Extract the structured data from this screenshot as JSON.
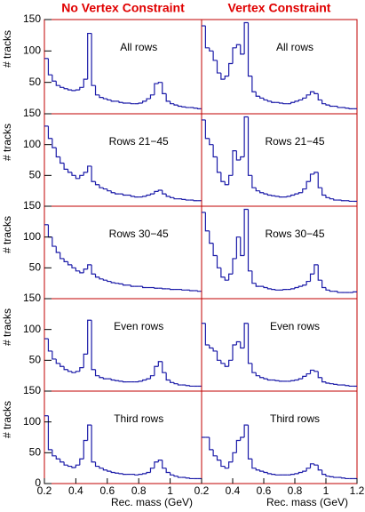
{
  "chart_data": [
    {
      "type": "histogram",
      "title": "No Vertex Constraint",
      "annotation": "All rows",
      "ylabel": "# tracks",
      "color": "#1a1aa8",
      "bins": [
        0.2,
        0.225,
        0.25,
        0.275,
        0.3,
        0.325,
        0.35,
        0.375,
        0.4,
        0.425,
        0.45,
        0.475,
        0.5,
        0.525,
        0.55,
        0.575,
        0.6,
        0.625,
        0.65,
        0.675,
        0.7,
        0.725,
        0.75,
        0.775,
        0.8,
        0.825,
        0.85,
        0.875,
        0.9,
        0.925,
        0.95,
        0.975,
        1.0,
        1.025,
        1.05,
        1.075,
        1.1,
        1.125,
        1.15,
        1.175,
        1.2
      ],
      "values": [
        88,
        62,
        52,
        45,
        42,
        40,
        38,
        37,
        38,
        42,
        55,
        128,
        45,
        30,
        26,
        24,
        22,
        20,
        20,
        18,
        17,
        17,
        16,
        16,
        17,
        20,
        24,
        30,
        48,
        50,
        32,
        20,
        16,
        14,
        12,
        11,
        10,
        10,
        9,
        8
      ],
      "xlim": [
        0.2,
        1.2
      ],
      "ylim": [
        0,
        150
      ],
      "yticks": [
        50,
        100,
        150
      ]
    },
    {
      "type": "histogram",
      "title": "Vertex Constraint",
      "annotation": "All rows",
      "color": "#1a1aa8",
      "bins": [
        0.2,
        0.225,
        0.25,
        0.275,
        0.3,
        0.325,
        0.35,
        0.375,
        0.4,
        0.425,
        0.45,
        0.475,
        0.5,
        0.525,
        0.55,
        0.575,
        0.6,
        0.625,
        0.65,
        0.675,
        0.7,
        0.725,
        0.75,
        0.775,
        0.8,
        0.825,
        0.85,
        0.875,
        0.9,
        0.925,
        0.95,
        0.975,
        1.0,
        1.025,
        1.05,
        1.075,
        1.1,
        1.125,
        1.15,
        1.175,
        1.2
      ],
      "values": [
        140,
        105,
        100,
        85,
        65,
        55,
        60,
        80,
        105,
        110,
        95,
        145,
        60,
        35,
        28,
        25,
        22,
        20,
        18,
        18,
        17,
        16,
        16,
        18,
        20,
        22,
        25,
        30,
        35,
        32,
        22,
        16,
        14,
        12,
        12,
        10,
        10,
        9,
        8,
        8
      ],
      "xlim": [
        0.2,
        1.2
      ],
      "ylim": [
        0,
        150
      ]
    },
    {
      "type": "histogram",
      "annotation": "Rows 21−45",
      "ylabel": "# tracks",
      "color": "#1a1aa8",
      "bins": [
        0.2,
        0.225,
        0.25,
        0.275,
        0.3,
        0.325,
        0.35,
        0.375,
        0.4,
        0.425,
        0.45,
        0.475,
        0.5,
        0.525,
        0.55,
        0.575,
        0.6,
        0.625,
        0.65,
        0.675,
        0.7,
        0.725,
        0.75,
        0.775,
        0.8,
        0.825,
        0.85,
        0.875,
        0.9,
        0.925,
        0.95,
        0.975,
        1.0,
        1.025,
        1.05,
        1.075,
        1.1,
        1.125,
        1.15,
        1.175,
        1.2
      ],
      "values": [
        130,
        110,
        95,
        80,
        70,
        60,
        55,
        50,
        45,
        50,
        55,
        65,
        40,
        35,
        30,
        28,
        25,
        22,
        20,
        20,
        18,
        18,
        16,
        15,
        15,
        16,
        18,
        20,
        24,
        26,
        20,
        16,
        14,
        12,
        12,
        11,
        10,
        10,
        9,
        9
      ],
      "xlim": [
        0.2,
        1.2
      ],
      "ylim": [
        0,
        150
      ],
      "yticks": [
        50,
        100,
        150
      ]
    },
    {
      "type": "histogram",
      "annotation": "Rows 21−45",
      "color": "#1a1aa8",
      "bins": [
        0.2,
        0.225,
        0.25,
        0.275,
        0.3,
        0.325,
        0.35,
        0.375,
        0.4,
        0.425,
        0.45,
        0.475,
        0.5,
        0.525,
        0.55,
        0.575,
        0.6,
        0.625,
        0.65,
        0.675,
        0.7,
        0.725,
        0.75,
        0.775,
        0.8,
        0.825,
        0.85,
        0.875,
        0.9,
        0.925,
        0.95,
        0.975,
        1.0,
        1.025,
        1.05,
        1.075,
        1.1,
        1.125,
        1.15,
        1.175,
        1.2
      ],
      "values": [
        140,
        110,
        100,
        80,
        55,
        40,
        35,
        50,
        90,
        75,
        80,
        145,
        50,
        30,
        25,
        22,
        20,
        18,
        17,
        16,
        15,
        15,
        16,
        18,
        20,
        22,
        28,
        40,
        52,
        55,
        30,
        18,
        14,
        12,
        10,
        10,
        9,
        9,
        8,
        8
      ],
      "xlim": [
        0.2,
        1.2
      ],
      "ylim": [
        0,
        150
      ]
    },
    {
      "type": "histogram",
      "annotation": "Rows 30−45",
      "ylabel": "# tracks",
      "color": "#1a1aa8",
      "bins": [
        0.2,
        0.225,
        0.25,
        0.275,
        0.3,
        0.325,
        0.35,
        0.375,
        0.4,
        0.425,
        0.45,
        0.475,
        0.5,
        0.525,
        0.55,
        0.575,
        0.6,
        0.625,
        0.65,
        0.675,
        0.7,
        0.725,
        0.75,
        0.775,
        0.8,
        0.825,
        0.85,
        0.875,
        0.9,
        0.925,
        0.95,
        0.975,
        1.0,
        1.025,
        1.05,
        1.075,
        1.1,
        1.125,
        1.15,
        1.175,
        1.2
      ],
      "values": [
        120,
        100,
        85,
        75,
        65,
        60,
        55,
        50,
        45,
        42,
        48,
        55,
        40,
        35,
        32,
        30,
        28,
        26,
        25,
        24,
        22,
        22,
        20,
        20,
        20,
        18,
        18,
        18,
        17,
        17,
        16,
        16,
        15,
        15,
        15,
        14,
        14,
        13,
        13,
        12
      ],
      "xlim": [
        0.2,
        1.2
      ],
      "ylim": [
        0,
        150
      ],
      "yticks": [
        50,
        100,
        150
      ]
    },
    {
      "type": "histogram",
      "annotation": "Rows 30−45",
      "color": "#1a1aa8",
      "bins": [
        0.2,
        0.225,
        0.25,
        0.275,
        0.3,
        0.325,
        0.35,
        0.375,
        0.4,
        0.425,
        0.45,
        0.475,
        0.5,
        0.525,
        0.55,
        0.575,
        0.6,
        0.625,
        0.65,
        0.675,
        0.7,
        0.725,
        0.75,
        0.775,
        0.8,
        0.825,
        0.85,
        0.875,
        0.9,
        0.925,
        0.95,
        0.975,
        1.0,
        1.025,
        1.05,
        1.075,
        1.1,
        1.125,
        1.15,
        1.175,
        1.2
      ],
      "values": [
        140,
        110,
        90,
        70,
        50,
        35,
        30,
        40,
        65,
        100,
        70,
        145,
        45,
        25,
        20,
        20,
        18,
        16,
        15,
        14,
        14,
        15,
        15,
        16,
        18,
        20,
        22,
        28,
        40,
        55,
        30,
        18,
        14,
        12,
        12,
        10,
        10,
        10,
        10,
        11
      ],
      "xlim": [
        0.2,
        1.2
      ],
      "ylim": [
        0,
        150
      ]
    },
    {
      "type": "histogram",
      "annotation": "Even rows",
      "ylabel": "# tracks",
      "color": "#1a1aa8",
      "bins": [
        0.2,
        0.225,
        0.25,
        0.275,
        0.3,
        0.325,
        0.35,
        0.375,
        0.4,
        0.425,
        0.45,
        0.475,
        0.5,
        0.525,
        0.55,
        0.575,
        0.6,
        0.625,
        0.65,
        0.675,
        0.7,
        0.725,
        0.75,
        0.775,
        0.8,
        0.825,
        0.85,
        0.875,
        0.9,
        0.925,
        0.95,
        0.975,
        1.0,
        1.025,
        1.05,
        1.075,
        1.1,
        1.125,
        1.15,
        1.175,
        1.2
      ],
      "values": [
        85,
        65,
        52,
        45,
        40,
        35,
        32,
        30,
        32,
        38,
        60,
        115,
        35,
        25,
        22,
        20,
        20,
        18,
        17,
        16,
        15,
        15,
        15,
        15,
        16,
        18,
        20,
        25,
        40,
        48,
        30,
        18,
        14,
        12,
        10,
        10,
        9,
        8,
        8,
        8
      ],
      "xlim": [
        0.2,
        1.2
      ],
      "ylim": [
        0,
        150
      ],
      "yticks": [
        50,
        100,
        150
      ]
    },
    {
      "type": "histogram",
      "annotation": "Even rows",
      "color": "#1a1aa8",
      "bins": [
        0.2,
        0.225,
        0.25,
        0.275,
        0.3,
        0.325,
        0.35,
        0.375,
        0.4,
        0.425,
        0.45,
        0.475,
        0.5,
        0.525,
        0.55,
        0.575,
        0.6,
        0.625,
        0.65,
        0.675,
        0.7,
        0.725,
        0.75,
        0.775,
        0.8,
        0.825,
        0.85,
        0.875,
        0.9,
        0.925,
        0.95,
        0.975,
        1.0,
        1.025,
        1.05,
        1.075,
        1.1,
        1.125,
        1.15,
        1.175,
        1.2
      ],
      "values": [
        110,
        75,
        70,
        65,
        50,
        45,
        40,
        50,
        75,
        80,
        70,
        110,
        45,
        30,
        25,
        22,
        20,
        18,
        18,
        17,
        16,
        16,
        16,
        17,
        18,
        20,
        24,
        28,
        34,
        32,
        22,
        15,
        13,
        12,
        11,
        10,
        10,
        9,
        8,
        8
      ],
      "xlim": [
        0.2,
        1.2
      ],
      "ylim": [
        0,
        150
      ]
    },
    {
      "type": "histogram",
      "annotation": "Third rows",
      "ylabel": "# tracks",
      "xlabel": "Rec. mass (GeV)",
      "color": "#1a1aa8",
      "bins": [
        0.2,
        0.225,
        0.25,
        0.275,
        0.3,
        0.325,
        0.35,
        0.375,
        0.4,
        0.425,
        0.45,
        0.475,
        0.5,
        0.525,
        0.55,
        0.575,
        0.6,
        0.625,
        0.65,
        0.675,
        0.7,
        0.725,
        0.75,
        0.775,
        0.8,
        0.825,
        0.85,
        0.875,
        0.9,
        0.925,
        0.95,
        0.975,
        1.0,
        1.025,
        1.05,
        1.075,
        1.1,
        1.125,
        1.15,
        1.175,
        1.2
      ],
      "values": [
        110,
        55,
        45,
        40,
        35,
        30,
        28,
        26,
        30,
        40,
        70,
        95,
        35,
        28,
        25,
        22,
        20,
        18,
        17,
        16,
        15,
        15,
        15,
        14,
        15,
        16,
        18,
        25,
        35,
        38,
        25,
        18,
        14,
        12,
        10,
        10,
        9,
        8,
        8,
        8
      ],
      "xlim": [
        0.2,
        1.2
      ],
      "ylim": [
        0,
        150
      ],
      "yticks": [
        0,
        50,
        100,
        150
      ],
      "xticks": [
        0.2,
        0.4,
        0.6,
        0.8,
        1
      ]
    },
    {
      "type": "histogram",
      "annotation": "Third rows",
      "xlabel": "Rec. mass (GeV)",
      "color": "#1a1aa8",
      "bins": [
        0.2,
        0.225,
        0.25,
        0.275,
        0.3,
        0.325,
        0.35,
        0.375,
        0.4,
        0.425,
        0.45,
        0.475,
        0.5,
        0.525,
        0.55,
        0.575,
        0.6,
        0.625,
        0.65,
        0.675,
        0.7,
        0.725,
        0.75,
        0.775,
        0.8,
        0.825,
        0.85,
        0.875,
        0.9,
        0.925,
        0.95,
        0.975,
        1.0,
        1.025,
        1.05,
        1.075,
        1.1,
        1.125,
        1.15,
        1.175,
        1.2
      ],
      "values": [
        75,
        75,
        55,
        45,
        38,
        28,
        25,
        35,
        50,
        70,
        75,
        95,
        40,
        25,
        22,
        20,
        18,
        16,
        15,
        14,
        14,
        14,
        14,
        15,
        16,
        18,
        20,
        25,
        32,
        30,
        22,
        15,
        12,
        11,
        10,
        10,
        9,
        8,
        8,
        8
      ],
      "xlim": [
        0.2,
        1.2
      ],
      "ylim": [
        0,
        150
      ],
      "xticks": [
        0.2,
        0.4,
        0.6,
        0.8,
        1,
        1.2
      ]
    }
  ]
}
